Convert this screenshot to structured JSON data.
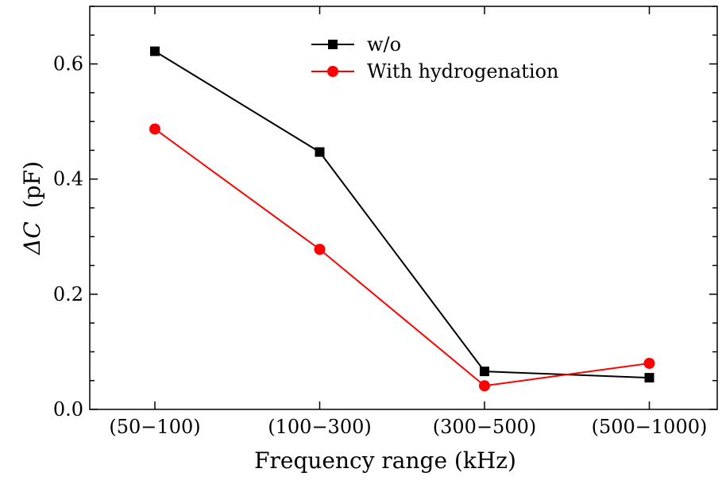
{
  "chart_data": {
    "type": "line",
    "title": "",
    "xlabel": "Frequency range (kHz)",
    "ylabel_symbol": "ΔC",
    "ylabel_unit": "(pF)",
    "categories": [
      "(50−100)",
      "(100−300)",
      "(300−500)",
      "(500−1000)"
    ],
    "ylim": [
      0.0,
      0.7
    ],
    "yticks": [
      0.0,
      0.2,
      0.4,
      0.6
    ],
    "ytick_labels": [
      "0.0",
      "0.2",
      "0.4",
      "0.6"
    ],
    "legend_position": "top-center",
    "grid": false,
    "series": [
      {
        "name": "w/o",
        "color": "#000000",
        "marker": "square",
        "values": [
          0.622,
          0.447,
          0.066,
          0.055
        ]
      },
      {
        "name": "With hydrogenation",
        "color": "#ff0000",
        "marker": "circle",
        "values": [
          0.487,
          0.278,
          0.041,
          0.08
        ]
      }
    ]
  }
}
